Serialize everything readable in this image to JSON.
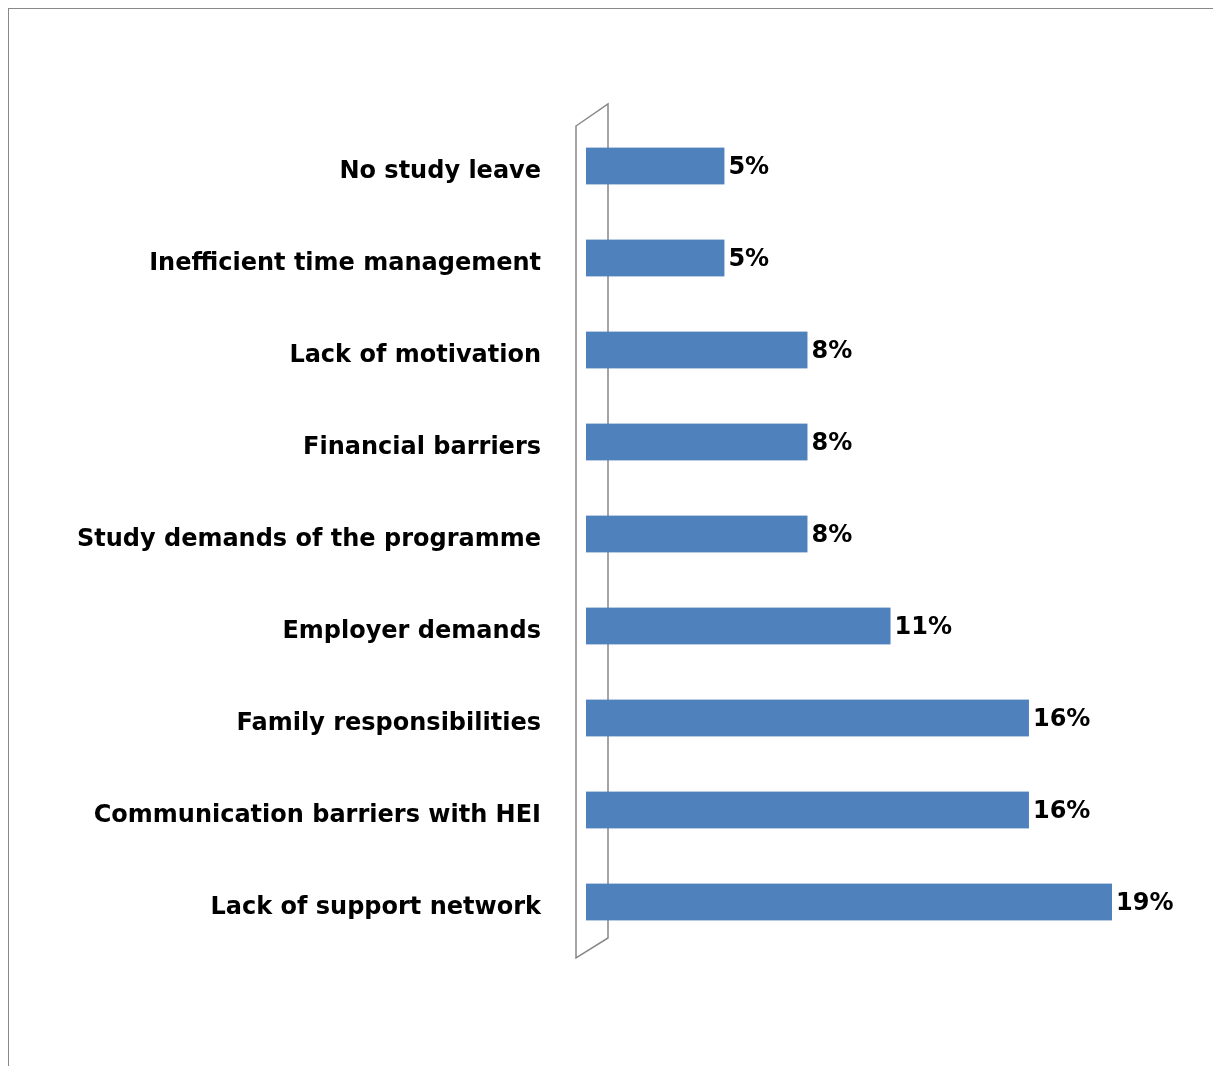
{
  "chart_data": {
    "type": "bar",
    "orientation": "horizontal",
    "categories": [
      "No study leave",
      "Inefficient time management",
      "Lack of motivation",
      "Financial barriers",
      "Study demands of the programme",
      "Employer demands",
      "Family responsibilities",
      "Communication barriers with HEI",
      "Lack of support network"
    ],
    "values": [
      5,
      5,
      8,
      8,
      8,
      11,
      16,
      16,
      19
    ],
    "value_labels": [
      "5%",
      "5%",
      "8%",
      "8%",
      "8%",
      "11%",
      "16%",
      "16%",
      "19%"
    ],
    "color": "#4f81bd"
  }
}
